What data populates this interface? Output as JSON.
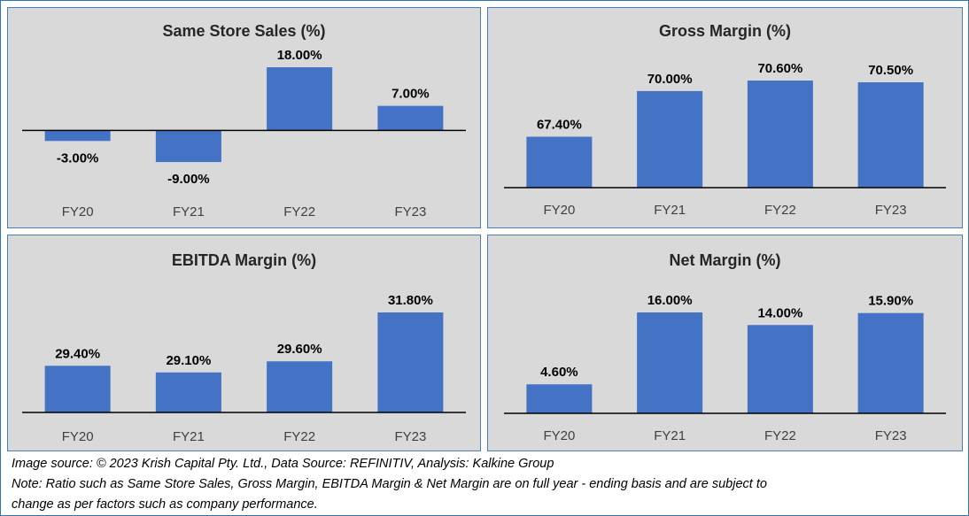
{
  "chart_data": [
    {
      "type": "bar",
      "title": "Same Store Sales (%)",
      "categories": [
        "FY20",
        "FY21",
        "FY22",
        "FY23"
      ],
      "values": [
        -3.0,
        -9.0,
        18.0,
        7.0
      ],
      "value_labels": [
        "-3.00%",
        "-9.00%",
        "18.00%",
        "7.00%"
      ],
      "ylim": [
        -12,
        18
      ],
      "grid": false,
      "legend": "none"
    },
    {
      "type": "bar",
      "title": "Gross Margin (%)",
      "categories": [
        "FY20",
        "FY21",
        "FY22",
        "FY23"
      ],
      "values": [
        67.4,
        70.0,
        70.6,
        70.5
      ],
      "value_labels": [
        "67.40%",
        "70.00%",
        "70.60%",
        "70.50%"
      ],
      "ylim": [
        64.5,
        70.6
      ],
      "grid": false,
      "legend": "none"
    },
    {
      "type": "bar",
      "title": "EBITDA Margin (%)",
      "categories": [
        "FY20",
        "FY21",
        "FY22",
        "FY23"
      ],
      "values": [
        29.4,
        29.1,
        29.6,
        31.8
      ],
      "value_labels": [
        "29.40%",
        "29.10%",
        "29.60%",
        "31.80%"
      ],
      "ylim": [
        27.3,
        31.8
      ],
      "grid": false,
      "legend": "none"
    },
    {
      "type": "bar",
      "title": "Net Margin (%)",
      "categories": [
        "FY20",
        "FY21",
        "FY22",
        "FY23"
      ],
      "values": [
        4.6,
        16.0,
        14.0,
        15.9
      ],
      "value_labels": [
        "4.60%",
        "16.00%",
        "14.00%",
        "15.90%"
      ],
      "ylim": [
        0,
        16
      ],
      "grid": false,
      "legend": "none"
    }
  ],
  "colors": {
    "bar": "#4472c4",
    "panel_bg": "#d9d9d9",
    "panel_border": "#4a7ebb"
  },
  "footer": {
    "source": "Image source: © 2023 Krish Capital Pty. Ltd., Data Source: REFINITIV, Analysis: Kalkine Group",
    "note_line1": "Note: Ratio such as Same Store Sales, Gross Margin, EBITDA Margin & Net Margin are on full year - ending basis and are subject to",
    "note_line2": "change as per factors such as company performance."
  }
}
